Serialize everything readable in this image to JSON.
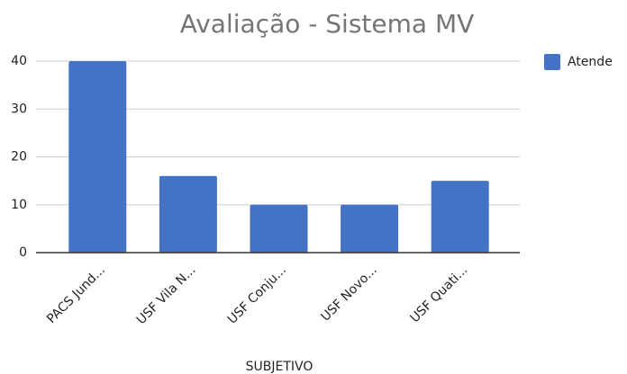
{
  "chart_data": {
    "type": "bar",
    "title": "Avaliação - Sistema MV",
    "x_label": "SUBJETIVO",
    "categories": [
      "PACS Jund...",
      "USF Vila N...",
      "USF Conju...",
      "USF Novo...",
      "USF Quati..."
    ],
    "series": [
      {
        "name": "Atende",
        "color": "#4472c4",
        "values": [
          40,
          16,
          10,
          10,
          15
        ]
      }
    ],
    "ylim": [
      0,
      40
    ],
    "yticks": [
      0,
      10,
      20,
      30,
      40
    ],
    "grid": true,
    "legend": "right"
  }
}
